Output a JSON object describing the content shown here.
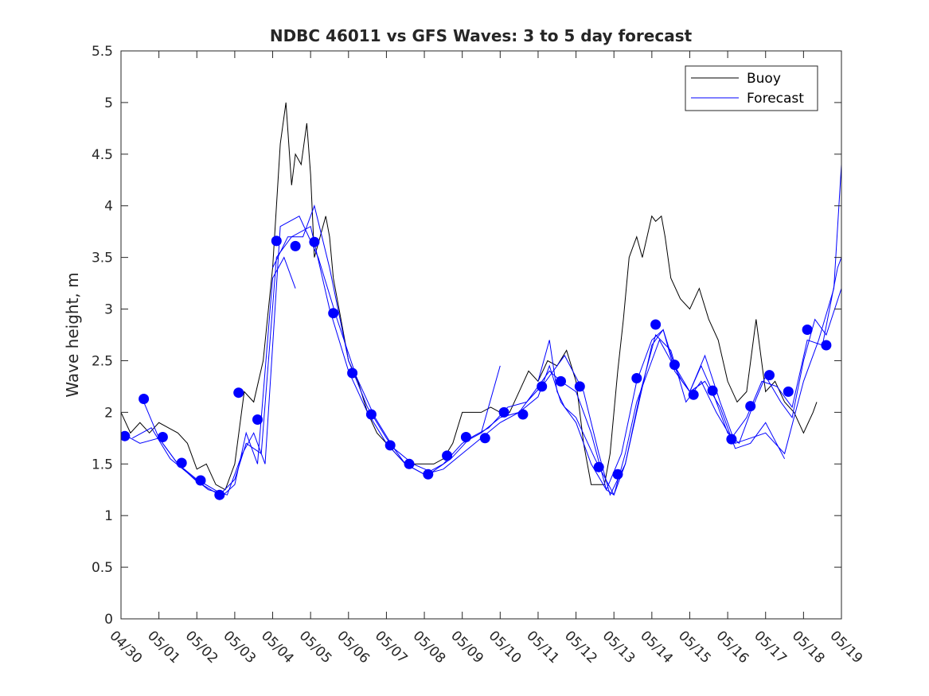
{
  "chart_data": {
    "type": "line",
    "title": "NDBC 46011 vs GFS Waves: 3 to 5 day forecast",
    "xlabel": "",
    "ylabel": "Wave height, m",
    "x_unit": "day (0 = 04/30)",
    "xlim": [
      0,
      19
    ],
    "ylim": [
      0,
      5.5
    ],
    "yticks": [
      0,
      0.5,
      1,
      1.5,
      2,
      2.5,
      3,
      3.5,
      4,
      4.5,
      5,
      5.5
    ],
    "xtick_labels": [
      "04/30",
      "05/01",
      "05/02",
      "05/03",
      "05/04",
      "05/05",
      "05/06",
      "05/07",
      "05/08",
      "05/09",
      "05/10",
      "05/11",
      "05/12",
      "05/13",
      "05/14",
      "05/15",
      "05/16",
      "05/17",
      "05/18",
      "05/19"
    ],
    "grid": false,
    "legend": {
      "placement": "top-right",
      "entries": [
        "Buoy",
        "Forecast"
      ]
    },
    "colors": {
      "buoy": "#000000",
      "forecast": "#0000ff",
      "axis": "#262626"
    },
    "buoy": {
      "name": "Buoy",
      "x": [
        0,
        0.25,
        0.5,
        0.75,
        1,
        1.25,
        1.5,
        1.75,
        2,
        2.25,
        2.5,
        2.75,
        3,
        3.25,
        3.5,
        3.75,
        4,
        4.1,
        4.2,
        4.35,
        4.5,
        4.6,
        4.75,
        4.9,
        5,
        5.1,
        5.25,
        5.4,
        5.5,
        5.6,
        5.75,
        6,
        6.25,
        6.5,
        6.75,
        7,
        7.25,
        7.5,
        7.75,
        8,
        8.25,
        8.5,
        8.75,
        9,
        9.25,
        9.5,
        9.75,
        10,
        10.25,
        10.5,
        10.75,
        11,
        11.25,
        11.5,
        11.75,
        12,
        12.2,
        12.4,
        12.6,
        12.75,
        12.9,
        13,
        13.1,
        13.25,
        13.4,
        13.5,
        13.6,
        13.75,
        14,
        14.1,
        14.25,
        14.35,
        14.5,
        14.75,
        15,
        15.25,
        15.5,
        15.75,
        16,
        16.25,
        16.5,
        16.75,
        17,
        17.25,
        17.5,
        17.75,
        18,
        18.25,
        18.35
      ],
      "y": [
        2.0,
        1.8,
        1.9,
        1.8,
        1.9,
        1.85,
        1.8,
        1.7,
        1.45,
        1.5,
        1.3,
        1.25,
        1.5,
        2.2,
        2.1,
        2.5,
        3.4,
        4.0,
        4.6,
        5.0,
        4.2,
        4.5,
        4.4,
        4.8,
        4.3,
        3.5,
        3.7,
        3.9,
        3.7,
        3.3,
        3.0,
        2.5,
        2.3,
        2.0,
        1.8,
        1.7,
        1.6,
        1.5,
        1.5,
        1.5,
        1.5,
        1.55,
        1.7,
        2.0,
        2.0,
        2.0,
        2.05,
        2.0,
        2.0,
        2.2,
        2.4,
        2.3,
        2.5,
        2.45,
        2.6,
        2.3,
        1.7,
        1.3,
        1.3,
        1.3,
        1.6,
        2.0,
        2.4,
        2.9,
        3.5,
        3.6,
        3.7,
        3.5,
        3.9,
        3.85,
        3.9,
        3.7,
        3.3,
        3.1,
        3.0,
        3.2,
        2.9,
        2.7,
        2.3,
        2.1,
        2.2,
        2.9,
        2.2,
        2.3,
        2.1,
        2.0,
        1.8,
        2.0,
        2.1
      ]
    },
    "forecast_runs": [
      {
        "x": [
          0,
          0.5,
          1,
          1.5,
          2,
          2.7,
          3,
          3.3,
          3.6,
          4,
          4.3,
          4.6
        ],
        "y": [
          1.8,
          1.7,
          1.75,
          1.5,
          1.35,
          1.2,
          1.3,
          1.8,
          1.5,
          3.3,
          3.5,
          3.2
        ]
      },
      {
        "x": [
          0.6,
          1,
          1.5,
          2,
          2.6,
          3,
          3.3,
          3.7,
          4.1,
          4.5,
          5,
          5.5,
          6,
          6.5,
          7,
          7.5,
          8,
          8.5,
          9,
          9.5,
          10,
          10.5,
          11,
          11.3,
          11.6,
          12,
          12.4,
          12.8,
          13,
          13.3,
          13.6,
          14,
          14.2,
          14.5,
          14.8,
          15,
          15.3,
          15.6,
          16,
          16.3,
          16.6,
          17,
          17.4,
          17.7,
          18,
          18.3,
          18.6,
          19
        ],
        "y": [
          2.1,
          1.75,
          1.5,
          1.33,
          1.2,
          1.35,
          1.7,
          1.6,
          3.5,
          3.7,
          3.8,
          3.0,
          2.4,
          2.0,
          1.7,
          1.5,
          1.4,
          1.5,
          1.7,
          1.8,
          1.95,
          2.0,
          2.25,
          2.4,
          2.3,
          2.2,
          1.8,
          1.25,
          1.2,
          1.6,
          2.1,
          2.5,
          2.7,
          2.5,
          2.3,
          2.2,
          2.45,
          2.2,
          1.8,
          1.7,
          2.0,
          2.35,
          2.1,
          1.95,
          2.5,
          2.9,
          2.75,
          3.2
        ]
      },
      {
        "x": [
          0.3,
          0.8,
          1.3,
          1.8,
          2.3,
          2.8,
          3.2,
          3.5,
          3.8,
          4.2,
          4.7,
          5.2,
          5.7,
          6.2,
          6.7,
          7.2,
          7.7,
          8.2,
          8.7,
          9.2,
          9.7,
          10.2,
          10.7,
          11.2,
          11.7,
          12.2,
          12.6,
          12.9,
          13.3,
          13.7,
          14.1,
          14.5,
          14.9,
          15.3,
          15.7,
          16.1,
          16.5,
          16.9,
          17.3,
          17.7,
          18.1,
          18.5,
          18.9,
          19
        ],
        "y": [
          1.75,
          1.85,
          1.55,
          1.4,
          1.25,
          1.2,
          1.6,
          1.8,
          1.5,
          3.8,
          3.9,
          3.5,
          2.9,
          2.35,
          1.95,
          1.65,
          1.5,
          1.42,
          1.55,
          1.75,
          1.85,
          2.05,
          2.1,
          2.3,
          2.55,
          2.2,
          1.6,
          1.2,
          1.5,
          2.2,
          2.75,
          2.6,
          2.1,
          2.3,
          2.0,
          1.75,
          1.95,
          2.3,
          2.25,
          2.05,
          2.7,
          2.65,
          3.4,
          3.5
        ]
      },
      {
        "x": [
          4.0,
          4.4,
          4.8,
          5.1,
          5.5,
          6.0,
          6.5,
          7.0,
          7.5,
          8.0,
          8.5,
          9.0,
          9.5,
          10.0,
          10.5,
          11.0,
          11.3,
          11.6,
          12.0,
          12.4,
          12.8,
          13.2,
          13.6,
          14.0,
          14.3,
          14.6,
          15.0,
          15.4,
          15.8,
          16.2,
          16.6,
          17.0,
          17.5,
          18.0,
          18.4,
          18.8,
          19
        ],
        "y": [
          3.4,
          3.7,
          3.7,
          4.0,
          3.4,
          2.5,
          2.05,
          1.75,
          1.5,
          1.4,
          1.45,
          1.6,
          1.75,
          1.9,
          2.0,
          2.15,
          2.45,
          2.1,
          1.9,
          1.5,
          1.25,
          1.6,
          2.3,
          2.7,
          2.8,
          2.45,
          2.2,
          2.55,
          2.1,
          1.7,
          1.75,
          1.8,
          1.6,
          2.3,
          2.7,
          3.2,
          4.4
        ]
      },
      {
        "x": [
          9.5,
          10.0
        ],
        "y": [
          1.8,
          2.45
        ]
      },
      {
        "x": [
          11.0,
          11.3,
          11.5,
          11.7,
          12.0,
          12.5,
          13.0,
          13.3,
          13.6,
          14.0,
          14.3,
          14.6,
          15.0,
          15.4,
          15.8,
          16.2,
          16.6,
          17.0,
          17.5
        ],
        "y": [
          2.3,
          2.7,
          2.2,
          2.05,
          1.95,
          1.55,
          1.2,
          1.5,
          2.0,
          2.65,
          2.8,
          2.4,
          2.2,
          2.3,
          2.05,
          1.65,
          1.7,
          1.9,
          1.55
        ]
      }
    ],
    "forecast_points": {
      "x": [
        0.1,
        0.6,
        1.1,
        1.6,
        2.1,
        2.6,
        3.1,
        3.6,
        4.1,
        4.6,
        5.1,
        5.6,
        6.1,
        6.6,
        7.1,
        7.6,
        8.1,
        8.6,
        9.1,
        9.6,
        10.1,
        10.6,
        11.1,
        11.6,
        12.1,
        12.6,
        13.1,
        13.6,
        14.1,
        14.6,
        15.1,
        15.6,
        16.1,
        16.6,
        17.1,
        17.6,
        18.1,
        18.6
      ],
      "y": [
        1.77,
        2.13,
        1.76,
        1.51,
        1.34,
        1.2,
        2.19,
        1.93,
        3.66,
        3.61,
        3.65,
        2.96,
        2.38,
        1.98,
        1.68,
        1.5,
        1.4,
        1.58,
        1.76,
        1.75,
        2.0,
        1.98,
        2.25,
        2.3,
        2.25,
        1.47,
        1.4,
        2.33,
        2.85,
        2.46,
        2.17,
        2.21,
        1.74,
        2.06,
        2.36,
        2.2,
        2.8,
        2.65
      ]
    }
  }
}
